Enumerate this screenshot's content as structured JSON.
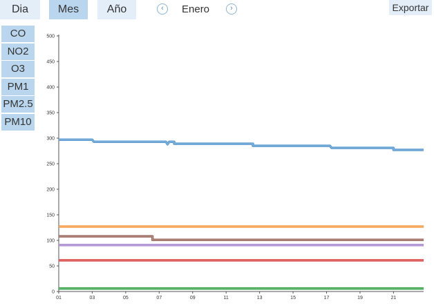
{
  "tabs": {
    "dia": "Dia",
    "mes": "Mes",
    "ano": "Año"
  },
  "nav": {
    "prev_icon": "chevron-left-icon",
    "next_icon": "chevron-right-icon",
    "prev": "‹",
    "next": "›",
    "month": "Enero"
  },
  "export_label": "Exportar",
  "pollutants": [
    "CO",
    "NO2",
    "O3",
    "PM1",
    "PM2.5",
    "PM10"
  ],
  "chart_data": {
    "type": "line",
    "title": "",
    "xlabel": "",
    "ylabel": "",
    "x_ticks": [
      "01",
      "03",
      "05",
      "07",
      "09",
      "11",
      "13",
      "15",
      "17",
      "19",
      "21"
    ],
    "xlim": [
      1,
      22.8
    ],
    "ylim": [
      0,
      500
    ],
    "y_ticks": [
      0,
      50,
      100,
      150,
      200,
      250,
      300,
      350,
      400,
      450,
      500
    ],
    "grid": false,
    "series": [
      {
        "color": "#5b9bd1",
        "points": [
          [
            1,
            297
          ],
          [
            3,
            297
          ],
          [
            3.1,
            293
          ],
          [
            7.4,
            293
          ],
          [
            7.5,
            288
          ],
          [
            7.6,
            293
          ],
          [
            7.9,
            293
          ],
          [
            7.9,
            289
          ],
          [
            12.6,
            289
          ],
          [
            12.6,
            285
          ],
          [
            17.2,
            285
          ],
          [
            17.3,
            281
          ],
          [
            21,
            281
          ],
          [
            21,
            277
          ],
          [
            22.8,
            277
          ]
        ]
      },
      {
        "color": "#f59d4a",
        "points": [
          [
            1,
            127
          ],
          [
            22.8,
            127
          ]
        ]
      },
      {
        "color": "#9b6b5e",
        "points": [
          [
            1,
            108
          ],
          [
            6.6,
            108
          ],
          [
            6.6,
            101
          ],
          [
            22.8,
            101
          ]
        ]
      },
      {
        "color": "#a98cd0",
        "points": [
          [
            1,
            91
          ],
          [
            22.8,
            91
          ]
        ]
      },
      {
        "color": "#d94b4b",
        "points": [
          [
            1,
            61
          ],
          [
            22.8,
            61
          ]
        ]
      },
      {
        "color": "#3aa54a",
        "points": [
          [
            1,
            6
          ],
          [
            22.8,
            6
          ]
        ]
      }
    ]
  }
}
